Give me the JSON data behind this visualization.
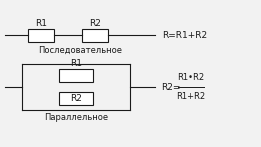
{
  "bg_color": "#f2f2f2",
  "line_color": "#1a1a1a",
  "series_text": "Последовательное",
  "parallel_text": "Параллельное",
  "series_eq": "R=R1+R2",
  "parallel_eq_left": "R2=",
  "parallel_eq_num": "R1•R2",
  "parallel_eq_den": "R1+R2",
  "font_label": 6.5,
  "font_eq": 6.5,
  "font_caption": 6.0,
  "lw": 0.8
}
